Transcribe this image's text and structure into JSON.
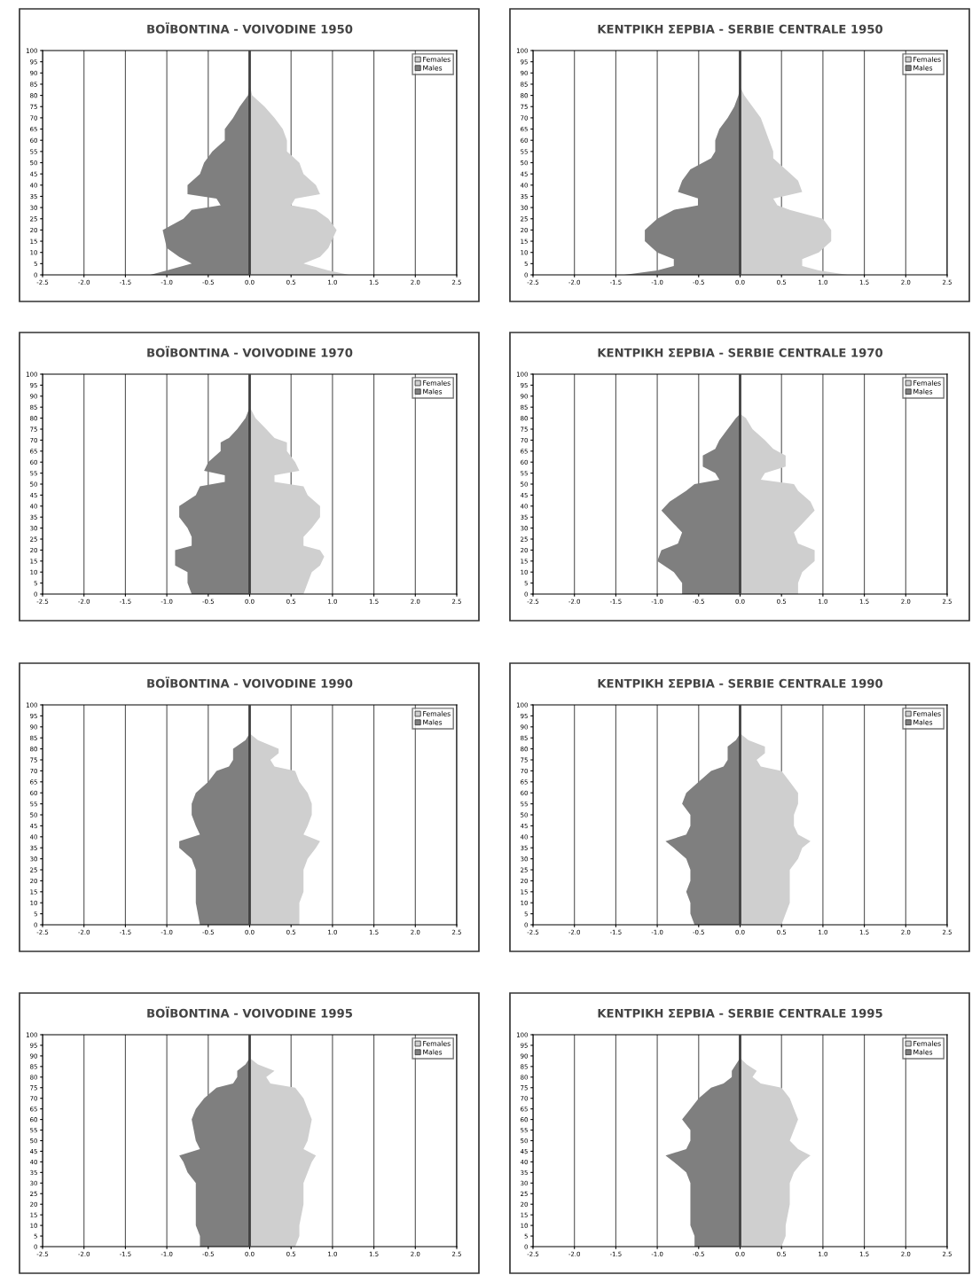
{
  "chart_data": [
    {
      "type": "area",
      "orientation": "horizontal",
      "title": "BOÏBONTINA - VOIVODINE 1950",
      "xlim": [
        -2.5,
        2.5
      ],
      "ylim": [
        0,
        100
      ],
      "grid": "x",
      "legend": "top right",
      "ref_lines": [
        {
          "axis": "x",
          "value": 0,
          "color": "#404040"
        }
      ],
      "xticks": [
        {
          "value": -2.5,
          "label": "-2.5"
        },
        {
          "value": -2.0,
          "label": "-2.0"
        },
        {
          "value": -1.5,
          "label": "-1.5"
        },
        {
          "value": -1.0,
          "label": "-1.0"
        },
        {
          "value": -0.5,
          "label": "-0.5"
        },
        {
          "value": 0,
          "label": "0.0"
        },
        {
          "value": 0.5,
          "label": "0.5"
        },
        {
          "value": 1.0,
          "label": "1.0"
        },
        {
          "value": 1.5,
          "label": "1.5"
        },
        {
          "value": 2.0,
          "label": "2.0"
        },
        {
          "value": 2.5,
          "label": "2.5"
        }
      ],
      "yticks": [
        0,
        5,
        10,
        15,
        20,
        25,
        30,
        35,
        40,
        45,
        50,
        55,
        60,
        65,
        70,
        75,
        80,
        85,
        90,
        95,
        100
      ],
      "x": [
        0,
        2,
        5,
        8,
        12,
        20,
        25,
        29,
        31,
        34,
        36,
        40,
        45,
        50,
        55,
        60,
        65,
        70,
        75,
        80,
        85
      ],
      "series": [
        {
          "name": "Females",
          "color": "#cfcfcf",
          "values": [
            1.2,
            0.95,
            0.65,
            0.85,
            0.95,
            1.05,
            0.95,
            0.8,
            0.5,
            0.55,
            0.85,
            0.8,
            0.65,
            0.6,
            0.45,
            0.45,
            0.4,
            0.3,
            0.18,
            0.03,
            0
          ]
        },
        {
          "name": "Males",
          "color": "#7f7f7f",
          "values": [
            -1.2,
            -1.0,
            -0.7,
            -0.85,
            -1.0,
            -1.05,
            -0.8,
            -0.7,
            -0.35,
            -0.4,
            -0.75,
            -0.75,
            -0.6,
            -0.55,
            -0.45,
            -0.3,
            -0.3,
            -0.2,
            -0.12,
            -0.02,
            0
          ]
        }
      ]
    },
    {
      "type": "area",
      "orientation": "horizontal",
      "title": "ΚΕΝΤΡΙΚΗ ΣΕΡΒΙΑ - SERBIE CENTRALE 1950",
      "xlim": [
        -2.5,
        2.5
      ],
      "ylim": [
        0,
        100
      ],
      "grid": "x",
      "legend": "top right",
      "ref_lines": [
        {
          "axis": "x",
          "value": 0,
          "color": "#404040"
        }
      ],
      "xticks": [
        {
          "value": -2.5,
          "label": "-2.5"
        },
        {
          "value": -2.0,
          "label": "-2.0"
        },
        {
          "value": -1.5,
          "label": "-1.5"
        },
        {
          "value": -1.0,
          "label": "-1.0"
        },
        {
          "value": -0.5,
          "label": "-0.5"
        },
        {
          "value": 0,
          "label": "0.0"
        },
        {
          "value": 0.5,
          "label": "0.5"
        },
        {
          "value": 1.0,
          "label": "1.0"
        },
        {
          "value": 1.5,
          "label": "1.5"
        },
        {
          "value": 2.0,
          "label": "2.0"
        },
        {
          "value": 2.5,
          "label": "2.5"
        }
      ],
      "yticks": [
        0,
        5,
        10,
        15,
        20,
        25,
        30,
        35,
        40,
        45,
        50,
        55,
        60,
        65,
        70,
        75,
        80,
        85,
        90,
        95,
        100
      ],
      "x": [
        0,
        2,
        4,
        7,
        10,
        15,
        20,
        25,
        29,
        31,
        34,
        37,
        42,
        47,
        52,
        55,
        60,
        65,
        70,
        75,
        80,
        84
      ],
      "series": [
        {
          "name": "Females",
          "color": "#cfcfcf",
          "values": [
            1.3,
            0.95,
            0.75,
            0.75,
            0.95,
            1.1,
            1.1,
            1.0,
            0.6,
            0.45,
            0.4,
            0.75,
            0.7,
            0.55,
            0.4,
            0.4,
            0.35,
            0.3,
            0.25,
            0.15,
            0.05,
            0
          ]
        },
        {
          "name": "Males",
          "color": "#7f7f7f",
          "values": [
            -1.4,
            -1.0,
            -0.8,
            -0.8,
            -1.0,
            -1.15,
            -1.15,
            -1.0,
            -0.8,
            -0.5,
            -0.5,
            -0.75,
            -0.7,
            -0.6,
            -0.35,
            -0.3,
            -0.3,
            -0.25,
            -0.15,
            -0.07,
            -0.02,
            0
          ]
        }
      ]
    },
    {
      "type": "area",
      "orientation": "horizontal",
      "title": "BOÏBONTINA - VOIVODINE 1970",
      "xlim": [
        -2.5,
        2.5
      ],
      "ylim": [
        0,
        100
      ],
      "grid": "x",
      "legend": "top right",
      "ref_lines": [
        {
          "axis": "x",
          "value": 0,
          "color": "#404040"
        }
      ],
      "xticks": [
        {
          "value": -2.5,
          "label": "-2.5"
        },
        {
          "value": -2.0,
          "label": "-2.0"
        },
        {
          "value": -1.5,
          "label": "-1.5"
        },
        {
          "value": -1.0,
          "label": "-1.0"
        },
        {
          "value": -0.5,
          "label": "-0.5"
        },
        {
          "value": 0,
          "label": "0.0"
        },
        {
          "value": 0.5,
          "label": "0.5"
        },
        {
          "value": 1.0,
          "label": "1.0"
        },
        {
          "value": 1.5,
          "label": "1.5"
        },
        {
          "value": 2.0,
          "label": "2.0"
        },
        {
          "value": 2.5,
          "label": "2.5"
        }
      ],
      "yticks": [
        0,
        5,
        10,
        15,
        20,
        25,
        30,
        35,
        40,
        45,
        50,
        55,
        60,
        65,
        70,
        75,
        80,
        85,
        90,
        95,
        100
      ],
      "x": [
        0,
        5,
        10,
        13,
        17,
        20,
        22,
        26,
        30,
        35,
        40,
        45,
        49,
        51,
        54,
        56,
        60,
        65,
        69,
        71,
        75,
        80,
        83,
        85
      ],
      "series": [
        {
          "name": "Females",
          "color": "#cfcfcf",
          "values": [
            0.65,
            0.7,
            0.75,
            0.85,
            0.9,
            0.85,
            0.65,
            0.65,
            0.75,
            0.85,
            0.85,
            0.7,
            0.65,
            0.3,
            0.3,
            0.6,
            0.55,
            0.45,
            0.45,
            0.3,
            0.2,
            0.07,
            0.03,
            0
          ]
        },
        {
          "name": "Males",
          "color": "#7f7f7f",
          "values": [
            -0.7,
            -0.75,
            -0.75,
            -0.9,
            -0.9,
            -0.9,
            -0.7,
            -0.7,
            -0.75,
            -0.85,
            -0.85,
            -0.65,
            -0.6,
            -0.3,
            -0.3,
            -0.55,
            -0.5,
            -0.35,
            -0.35,
            -0.25,
            -0.15,
            -0.05,
            -0.02,
            0
          ]
        }
      ]
    },
    {
      "type": "area",
      "orientation": "horizontal",
      "title": "ΚΕΝΤΡΙΚΗ ΣΕΡΒΙΑ - SERBIE CENTRALE 1970",
      "xlim": [
        -2.5,
        2.5
      ],
      "ylim": [
        0,
        100
      ],
      "grid": "x",
      "legend": "top right",
      "ref_lines": [
        {
          "axis": "x",
          "value": 0,
          "color": "#404040"
        }
      ],
      "xticks": [
        {
          "value": -2.5,
          "label": "-2.5"
        },
        {
          "value": -2.0,
          "label": "-2.0"
        },
        {
          "value": -1.5,
          "label": "-1.5"
        },
        {
          "value": -1.0,
          "label": "-1.0"
        },
        {
          "value": -0.5,
          "label": "-0.5"
        },
        {
          "value": 0,
          "label": "0.0"
        },
        {
          "value": 0.5,
          "label": "0.5"
        },
        {
          "value": 1.0,
          "label": "1.0"
        },
        {
          "value": 1.5,
          "label": "1.5"
        },
        {
          "value": 2.0,
          "label": "2.0"
        },
        {
          "value": 2.5,
          "label": "2.5"
        }
      ],
      "yticks": [
        0,
        5,
        10,
        15,
        20,
        25,
        30,
        35,
        40,
        45,
        50,
        55,
        60,
        65,
        70,
        75,
        80,
        85,
        90,
        95,
        100
      ],
      "x": [
        0,
        5,
        10,
        15,
        20,
        23,
        28,
        32,
        38,
        42,
        47,
        50,
        52,
        55,
        58,
        63,
        66,
        70,
        75,
        80,
        82
      ],
      "series": [
        {
          "name": "Females",
          "color": "#cfcfcf",
          "values": [
            0.7,
            0.7,
            0.75,
            0.9,
            0.9,
            0.7,
            0.65,
            0.75,
            0.9,
            0.85,
            0.7,
            0.65,
            0.25,
            0.3,
            0.55,
            0.55,
            0.4,
            0.3,
            0.15,
            0.07,
            0
          ]
        },
        {
          "name": "Males",
          "color": "#7f7f7f",
          "values": [
            -0.7,
            -0.7,
            -0.8,
            -1.0,
            -0.95,
            -0.75,
            -0.7,
            -0.8,
            -0.95,
            -0.85,
            -0.65,
            -0.55,
            -0.25,
            -0.3,
            -0.45,
            -0.45,
            -0.3,
            -0.25,
            -0.15,
            -0.05,
            0
          ]
        }
      ]
    },
    {
      "type": "area",
      "orientation": "horizontal",
      "title": "BOÏBONTINA - VOIVODINE 1990",
      "xlim": [
        -2.5,
        2.5
      ],
      "ylim": [
        0,
        100
      ],
      "grid": "x",
      "legend": "top right",
      "ref_lines": [
        {
          "axis": "x",
          "value": 0,
          "color": "#404040"
        }
      ],
      "xticks": [
        {
          "value": -2.5,
          "label": "-2.5"
        },
        {
          "value": -2.0,
          "label": "-2.0"
        },
        {
          "value": -1.5,
          "label": "-1.5"
        },
        {
          "value": -1.0,
          "label": "-1.0"
        },
        {
          "value": -0.5,
          "label": "-0.5"
        },
        {
          "value": 0,
          "label": "0.0"
        },
        {
          "value": 0.5,
          "label": "0.5"
        },
        {
          "value": 1.0,
          "label": "1.0"
        },
        {
          "value": 1.5,
          "label": "1.5"
        },
        {
          "value": 2.0,
          "label": "2.0"
        },
        {
          "value": 2.5,
          "label": "2.5"
        }
      ],
      "yticks": [
        0,
        5,
        10,
        15,
        20,
        25,
        30,
        35,
        40,
        45,
        50,
        55,
        60,
        65,
        70,
        75,
        80,
        85,
        90,
        95,
        100
      ],
      "x": [
        0,
        10,
        15,
        20,
        25,
        30,
        35,
        38,
        41,
        45,
        50,
        55,
        60,
        65,
        70,
        72,
        75,
        78,
        80,
        84,
        87
      ],
      "series": [
        {
          "name": "Females",
          "color": "#cfcfcf",
          "values": [
            0.6,
            0.6,
            0.65,
            0.65,
            0.65,
            0.7,
            0.8,
            0.85,
            0.65,
            0.7,
            0.75,
            0.75,
            0.7,
            0.6,
            0.55,
            0.3,
            0.25,
            0.35,
            0.35,
            0.1,
            0
          ]
        },
        {
          "name": "Males",
          "color": "#7f7f7f",
          "values": [
            -0.6,
            -0.65,
            -0.65,
            -0.65,
            -0.65,
            -0.7,
            -0.85,
            -0.85,
            -0.6,
            -0.65,
            -0.7,
            -0.7,
            -0.65,
            -0.5,
            -0.4,
            -0.25,
            -0.2,
            -0.2,
            -0.2,
            -0.05,
            0
          ]
        }
      ]
    },
    {
      "type": "area",
      "orientation": "horizontal",
      "title": "ΚΕΝΤΡΙΚΗ ΣΕΡΒΙΑ - SERBIE CENTRALE 1990",
      "xlim": [
        -2.5,
        2.5
      ],
      "ylim": [
        0,
        100
      ],
      "grid": "x",
      "legend": "top right",
      "ref_lines": [
        {
          "axis": "x",
          "value": 0,
          "color": "#404040"
        }
      ],
      "xticks": [
        {
          "value": -2.5,
          "label": "-2.5"
        },
        {
          "value": -2.0,
          "label": "-2.0"
        },
        {
          "value": -1.5,
          "label": "-1.5"
        },
        {
          "value": -1.0,
          "label": "-1.0"
        },
        {
          "value": -0.5,
          "label": "-0.5"
        },
        {
          "value": 0,
          "label": "0.0"
        },
        {
          "value": 0.5,
          "label": "0.5"
        },
        {
          "value": 1.0,
          "label": "1.0"
        },
        {
          "value": 1.5,
          "label": "1.5"
        },
        {
          "value": 2.0,
          "label": "2.0"
        },
        {
          "value": 2.5,
          "label": "2.5"
        }
      ],
      "yticks": [
        0,
        5,
        10,
        15,
        20,
        25,
        30,
        35,
        40,
        45,
        50,
        55,
        60,
        65,
        70,
        75,
        80,
        85,
        90,
        95,
        100
      ],
      "x": [
        0,
        5,
        10,
        15,
        20,
        25,
        30,
        35,
        38,
        41,
        45,
        50,
        55,
        60,
        65,
        70,
        72,
        75,
        78,
        81,
        84,
        87
      ],
      "series": [
        {
          "name": "Females",
          "color": "#cfcfcf",
          "values": [
            0.5,
            0.55,
            0.6,
            0.6,
            0.6,
            0.6,
            0.7,
            0.75,
            0.85,
            0.7,
            0.65,
            0.65,
            0.7,
            0.7,
            0.6,
            0.5,
            0.25,
            0.2,
            0.3,
            0.3,
            0.1,
            0
          ]
        },
        {
          "name": "Males",
          "color": "#7f7f7f",
          "values": [
            -0.55,
            -0.6,
            -0.6,
            -0.65,
            -0.6,
            -0.6,
            -0.65,
            -0.8,
            -0.9,
            -0.65,
            -0.6,
            -0.6,
            -0.7,
            -0.65,
            -0.5,
            -0.35,
            -0.2,
            -0.15,
            -0.15,
            -0.15,
            -0.05,
            0
          ]
        }
      ]
    },
    {
      "type": "area",
      "orientation": "horizontal",
      "title": "BOÏBONTINA - VOIVODINE 1995",
      "xlim": [
        -2.5,
        2.5
      ],
      "ylim": [
        0,
        100
      ],
      "grid": "x",
      "legend": "top right",
      "ref_lines": [
        {
          "axis": "x",
          "value": 0,
          "color": "#404040"
        }
      ],
      "xticks": [
        {
          "value": -2.5,
          "label": "-2.5"
        },
        {
          "value": -2.0,
          "label": "-2.0"
        },
        {
          "value": -1.5,
          "label": "-1.5"
        },
        {
          "value": -1.0,
          "label": "-1.0"
        },
        {
          "value": -0.5,
          "label": "-0.5"
        },
        {
          "value": 0,
          "label": "0.0"
        },
        {
          "value": 0.5,
          "label": "0.5"
        },
        {
          "value": 1.0,
          "label": "1.0"
        },
        {
          "value": 1.5,
          "label": "1.5"
        },
        {
          "value": 2.0,
          "label": "2.0"
        },
        {
          "value": 2.5,
          "label": "2.5"
        }
      ],
      "yticks": [
        0,
        5,
        10,
        15,
        20,
        25,
        30,
        35,
        40,
        45,
        50,
        55,
        60,
        65,
        70,
        75,
        80,
        85,
        90,
        95,
        100
      ],
      "x": [
        0,
        5,
        10,
        20,
        30,
        35,
        40,
        43,
        46,
        50,
        60,
        65,
        70,
        75,
        77,
        80,
        83,
        86,
        89
      ],
      "series": [
        {
          "name": "Females",
          "color": "#cfcfcf",
          "values": [
            0.55,
            0.6,
            0.6,
            0.65,
            0.65,
            0.7,
            0.75,
            0.8,
            0.65,
            0.7,
            0.75,
            0.7,
            0.65,
            0.55,
            0.25,
            0.2,
            0.3,
            0.1,
            0
          ]
        },
        {
          "name": "Males",
          "color": "#7f7f7f",
          "values": [
            -0.6,
            -0.6,
            -0.65,
            -0.65,
            -0.65,
            -0.75,
            -0.8,
            -0.85,
            -0.6,
            -0.65,
            -0.7,
            -0.65,
            -0.55,
            -0.4,
            -0.2,
            -0.15,
            -0.15,
            -0.05,
            0
          ]
        }
      ]
    },
    {
      "type": "area",
      "orientation": "horizontal",
      "title": "ΚΕΝΤΡΙΚΗ ΣΕΡΒΙΑ - SERBIE CENTRALE 1995",
      "xlim": [
        -2.5,
        2.5
      ],
      "ylim": [
        0,
        100
      ],
      "grid": "x",
      "legend": "top right",
      "ref_lines": [
        {
          "axis": "x",
          "value": 0,
          "color": "#404040"
        }
      ],
      "xticks": [
        {
          "value": -2.5,
          "label": "-2.5"
        },
        {
          "value": -2.0,
          "label": "-2.0"
        },
        {
          "value": -1.5,
          "label": "-1.5"
        },
        {
          "value": -1.0,
          "label": "-1.0"
        },
        {
          "value": -0.5,
          "label": "-0.5"
        },
        {
          "value": 0,
          "label": "0.0"
        },
        {
          "value": 0.5,
          "label": "0.5"
        },
        {
          "value": 1.0,
          "label": "1.0"
        },
        {
          "value": 1.5,
          "label": "1.5"
        },
        {
          "value": 2.0,
          "label": "2.0"
        },
        {
          "value": 2.5,
          "label": "2.5"
        }
      ],
      "yticks": [
        0,
        5,
        10,
        15,
        20,
        25,
        30,
        35,
        40,
        45,
        50,
        55,
        60,
        65,
        70,
        75,
        80,
        85,
        90,
        95,
        100
      ],
      "x": [
        0,
        5,
        10,
        20,
        30,
        35,
        40,
        43,
        46,
        50,
        55,
        60,
        65,
        70,
        75,
        77,
        80,
        83,
        86,
        89
      ],
      "series": [
        {
          "name": "Females",
          "color": "#cfcfcf",
          "values": [
            0.5,
            0.55,
            0.55,
            0.6,
            0.6,
            0.65,
            0.75,
            0.85,
            0.7,
            0.6,
            0.65,
            0.7,
            0.65,
            0.6,
            0.5,
            0.25,
            0.15,
            0.2,
            0.08,
            0
          ]
        },
        {
          "name": "Males",
          "color": "#7f7f7f",
          "values": [
            -0.55,
            -0.55,
            -0.6,
            -0.6,
            -0.6,
            -0.65,
            -0.8,
            -0.9,
            -0.65,
            -0.6,
            -0.6,
            -0.7,
            -0.6,
            -0.5,
            -0.35,
            -0.2,
            -0.1,
            -0.1,
            -0.05,
            0
          ]
        }
      ]
    }
  ]
}
